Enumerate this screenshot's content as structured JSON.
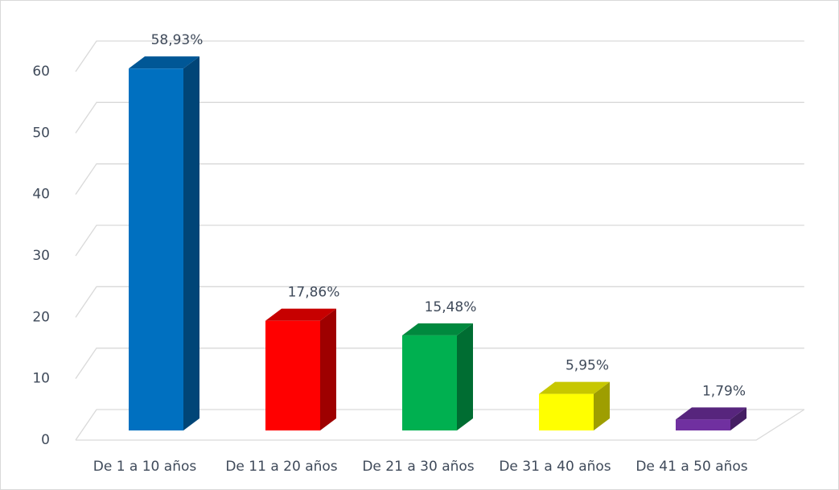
{
  "chart_data": {
    "type": "bar3d",
    "categories": [
      "De 1 a 10 años",
      "De 11 a 20 años",
      "De 21 a 30 años",
      "De 31 a 40 años",
      "De 41 a 50 años"
    ],
    "values": [
      58.93,
      17.86,
      15.48,
      5.95,
      1.79
    ],
    "value_labels": [
      "58,93%",
      "17,86%",
      "15,48%",
      "5,95%",
      "1,79%"
    ],
    "colors": [
      "#0070c0",
      "#ff0000",
      "#00b050",
      "#ffff00",
      "#7030a0"
    ],
    "ylim": [
      0,
      60
    ],
    "yticks": [
      0,
      10,
      20,
      30,
      40,
      50,
      60
    ],
    "grid": true
  }
}
